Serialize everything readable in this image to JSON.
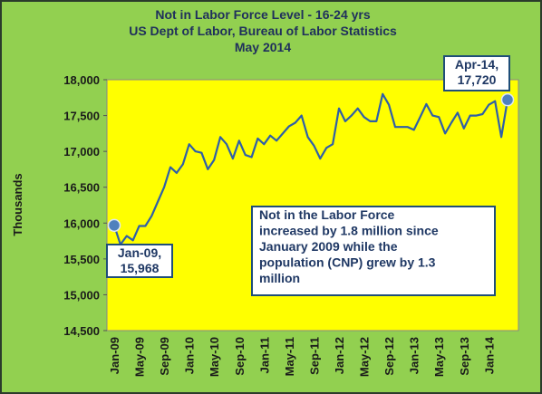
{
  "chart_data": {
    "type": "line",
    "title": [
      "Not in Labor Force Level - 16-24 yrs",
      "US Dept of Labor, Bureau of Labor Statistics",
      "May 2014"
    ],
    "y_label": "Thousands",
    "categories": [
      "Jan-09",
      null,
      null,
      null,
      "May-09",
      null,
      null,
      null,
      "Sep-09",
      null,
      null,
      null,
      "Jan-10",
      null,
      null,
      null,
      "May-10",
      null,
      null,
      null,
      "Sep-10",
      null,
      null,
      null,
      "Jan-11",
      null,
      null,
      null,
      "May-11",
      null,
      null,
      null,
      "Sep-11",
      null,
      null,
      null,
      "Jan-12",
      null,
      null,
      null,
      "May-12",
      null,
      null,
      null,
      "Sep-12",
      null,
      null,
      null,
      "Jan-13",
      null,
      null,
      null,
      "May-13",
      null,
      null,
      null,
      "Sep-13",
      null,
      null,
      null,
      "Jan-14",
      null,
      null,
      null
    ],
    "values": [
      15968,
      15700,
      15820,
      15760,
      15960,
      15960,
      16100,
      16300,
      16500,
      16780,
      16700,
      16820,
      17100,
      17000,
      16980,
      16750,
      16880,
      17200,
      17100,
      16900,
      17150,
      16950,
      16920,
      17180,
      17100,
      17220,
      17150,
      17250,
      17350,
      17400,
      17500,
      17200,
      17080,
      16900,
      17050,
      17100,
      17600,
      17420,
      17500,
      17600,
      17480,
      17420,
      17420,
      17800,
      17650,
      17340,
      17340,
      17340,
      17300,
      17480,
      17660,
      17500,
      17480,
      17250,
      17400,
      17540,
      17320,
      17500,
      17500,
      17520,
      17650,
      17700,
      17200,
      17720
    ],
    "color": "#2f5fa8",
    "marker_color": "#4f81bd",
    "ylim": [
      14500,
      18000
    ],
    "yticks": [
      {
        "value": 14500,
        "label": "14,500"
      },
      {
        "value": 15000,
        "label": "15,000"
      },
      {
        "value": 15500,
        "label": "15,500"
      },
      {
        "value": 16000,
        "label": "16,000"
      },
      {
        "value": 16500,
        "label": "16,500"
      },
      {
        "value": 17000,
        "label": "17,000"
      },
      {
        "value": 17500,
        "label": "17,500"
      },
      {
        "value": 18000,
        "label": "18,000"
      }
    ],
    "grid": false,
    "annotations": [
      {
        "lines": [
          "Jan-09,",
          "15,968"
        ]
      },
      {
        "lines": [
          "Apr-14,",
          "17,720"
        ]
      },
      {
        "lines": [
          "Not in the Labor  Force",
          "increased by 1.8 million since",
          "January  2009 while the",
          "population (CNP) grew by 1.3",
          "million"
        ]
      }
    ]
  }
}
